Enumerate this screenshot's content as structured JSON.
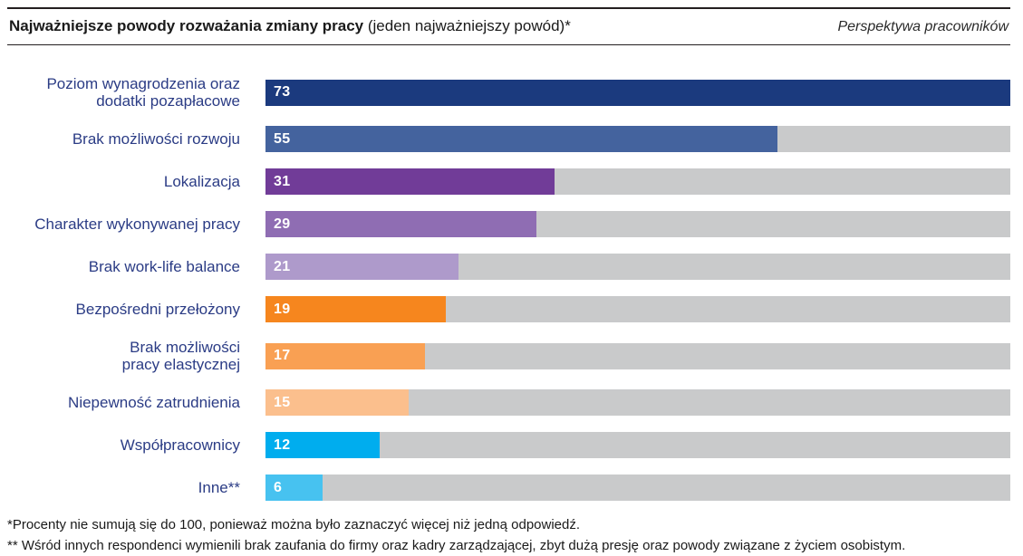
{
  "header": {
    "title_bold": "Najważniejsze powody rozważania zmiany pracy",
    "title_regular": " (jeden najważniejszy powód)*",
    "right_note": "Perspektywa pracowników"
  },
  "chart_data": {
    "type": "bar",
    "orientation": "horizontal",
    "title": "Najważniejsze powody rozważania zmiany pracy (jeden najważniejszy powód)*",
    "xlim": [
      0,
      80
    ],
    "grid": false,
    "legend": false,
    "track_color": "#c9cacb",
    "value_label_color": "#ffffff",
    "category_label_color": "#2b3c85",
    "categories": [
      "Poziom wynagrodzenia oraz\ndodatki pozapłacowe",
      "Brak możliwości rozwoju",
      "Lokalizacja",
      "Charakter wykonywanej pracy",
      "Brak work-life balance",
      "Bezpośredni przełożony",
      "Brak możliwości\npracy elastycznej",
      "Niepewność zatrudnienia",
      "Współpracownicy",
      "Inne**"
    ],
    "values": [
      73,
      55,
      31,
      29,
      21,
      19,
      17,
      15,
      12,
      6
    ],
    "bars": [
      {
        "label": "Poziom wynagrodzenia oraz\ndodatki pozapłacowe",
        "value": 73,
        "color": "#1b3a7e",
        "width_pct": 100
      },
      {
        "label": "Brak możliwości rozwoju",
        "value": 55,
        "color": "#44639e",
        "width_pct": 68.7
      },
      {
        "label": "Lokalizacja",
        "value": 31,
        "color": "#713c98",
        "width_pct": 38.8
      },
      {
        "label": "Charakter wykonywanej pracy",
        "value": 29,
        "color": "#8f6db3",
        "width_pct": 36.4
      },
      {
        "label": "Brak work-life balance",
        "value": 21,
        "color": "#ae9acb",
        "width_pct": 25.9
      },
      {
        "label": "Bezpośredni przełożony",
        "value": 19,
        "color": "#f6861e",
        "width_pct": 24.2
      },
      {
        "label": "Brak możliwości\npracy elastycznej",
        "value": 17,
        "color": "#f9a053",
        "width_pct": 21.4
      },
      {
        "label": "Niepewność zatrudnienia",
        "value": 15,
        "color": "#fbbf8d",
        "width_pct": 19.2
      },
      {
        "label": "Współpracownicy",
        "value": 12,
        "color": "#00adee",
        "width_pct": 15.3
      },
      {
        "label": "Inne**",
        "value": 6,
        "color": "#47c2f0",
        "width_pct": 7.7
      }
    ]
  },
  "footnotes": {
    "line1": "*Procenty nie sumują się do 100, ponieważ można było zaznaczyć więcej niż jedną odpowiedź.",
    "line2": "** Wśród innych respondenci wymienili brak zaufania do firmy oraz kadry zarządzającej, zbyt dużą presję oraz powody związane z życiem osobistym."
  }
}
